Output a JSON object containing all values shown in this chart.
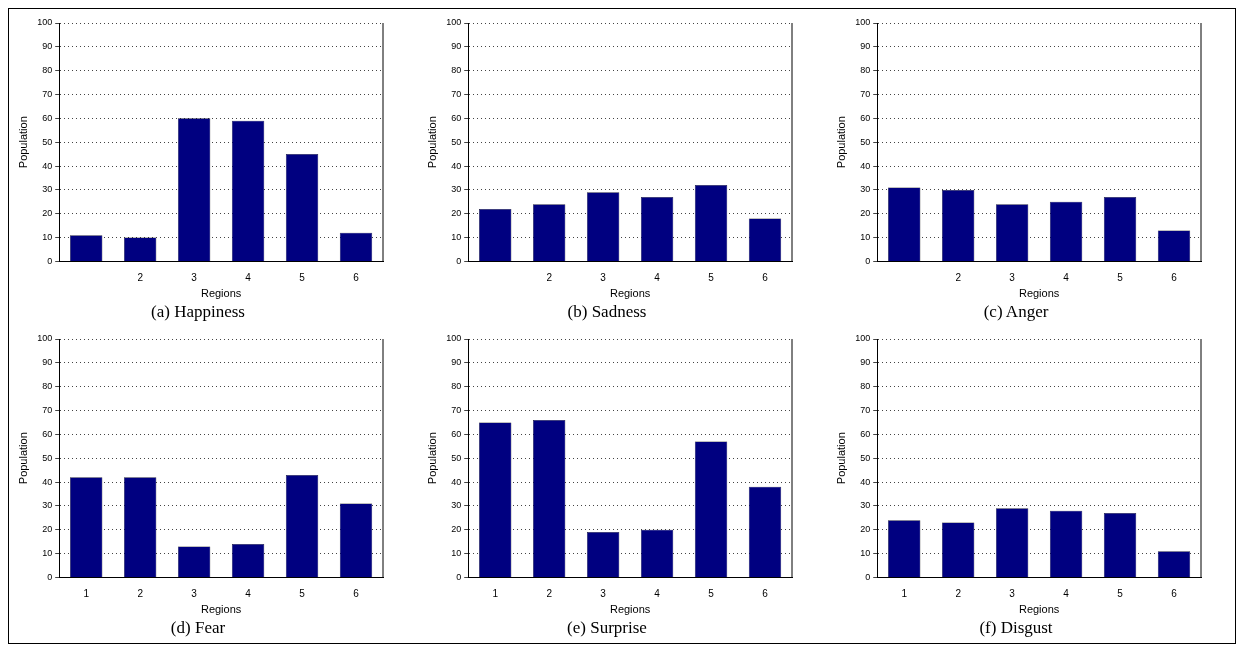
{
  "chart_data": [
    {
      "type": "bar",
      "title": "(a) Happiness",
      "xlabel": "Regions",
      "ylabel": "Population",
      "categories": [
        null,
        "2",
        "3",
        "4",
        "5",
        "6"
      ],
      "values": [
        11,
        10,
        60,
        59,
        45,
        12
      ],
      "color": "#000080",
      "ylim": [
        0,
        100
      ],
      "yticks": [
        0,
        10,
        20,
        30,
        40,
        50,
        60,
        70,
        80,
        90,
        100
      ],
      "grid": "y",
      "line_style": "dotted"
    },
    {
      "type": "bar",
      "title": "(b) Sadness",
      "xlabel": "Regions",
      "ylabel": "Population",
      "categories": [
        null,
        "2",
        "3",
        "4",
        "5",
        "6"
      ],
      "values": [
        22,
        24,
        29,
        27,
        32,
        18
      ],
      "color": "#000080",
      "ylim": [
        0,
        100
      ],
      "yticks": [
        0,
        10,
        20,
        30,
        40,
        50,
        60,
        70,
        80,
        90,
        100
      ],
      "grid": "y",
      "line_style": "dotted"
    },
    {
      "type": "bar",
      "title": "(c) Anger",
      "xlabel": "Regions",
      "ylabel": "Population",
      "categories": [
        null,
        "2",
        "3",
        "4",
        "5",
        "6"
      ],
      "values": [
        31,
        30,
        24,
        25,
        27,
        13
      ],
      "color": "#000080",
      "ylim": [
        0,
        100
      ],
      "yticks": [
        0,
        10,
        20,
        30,
        40,
        50,
        60,
        70,
        80,
        90,
        100
      ],
      "grid": "y",
      "line_style": "dotted"
    },
    {
      "type": "bar",
      "title": "(d) Fear",
      "xlabel": "Regions",
      "ylabel": "Population",
      "categories": [
        "1",
        "2",
        "3",
        "4",
        "5",
        "6"
      ],
      "values": [
        42,
        42,
        13,
        14,
        43,
        31
      ],
      "color": "#000080",
      "ylim": [
        0,
        100
      ],
      "yticks": [
        0,
        10,
        20,
        30,
        40,
        50,
        60,
        70,
        80,
        90,
        100
      ],
      "grid": "y",
      "line_style": "dotted"
    },
    {
      "type": "bar",
      "title": "(e) Surprise",
      "xlabel": "Regions",
      "ylabel": "Population",
      "categories": [
        "1",
        "2",
        "3",
        "4",
        "5",
        "6"
      ],
      "values": [
        65,
        66,
        19,
        20,
        57,
        38
      ],
      "color": "#000080",
      "ylim": [
        0,
        100
      ],
      "yticks": [
        0,
        10,
        20,
        30,
        40,
        50,
        60,
        70,
        80,
        90,
        100
      ],
      "grid": "y",
      "line_style": "dotted"
    },
    {
      "type": "bar",
      "title": "(f) Disgust",
      "xlabel": "Regions",
      "ylabel": "Population",
      "categories": [
        "1",
        "2",
        "3",
        "4",
        "5",
        "6"
      ],
      "values": [
        24,
        23,
        29,
        28,
        27,
        11
      ],
      "color": "#000080",
      "ylim": [
        0,
        100
      ],
      "yticks": [
        0,
        10,
        20,
        30,
        40,
        50,
        60,
        70,
        80,
        90,
        100
      ],
      "grid": "y",
      "line_style": "dotted"
    }
  ]
}
